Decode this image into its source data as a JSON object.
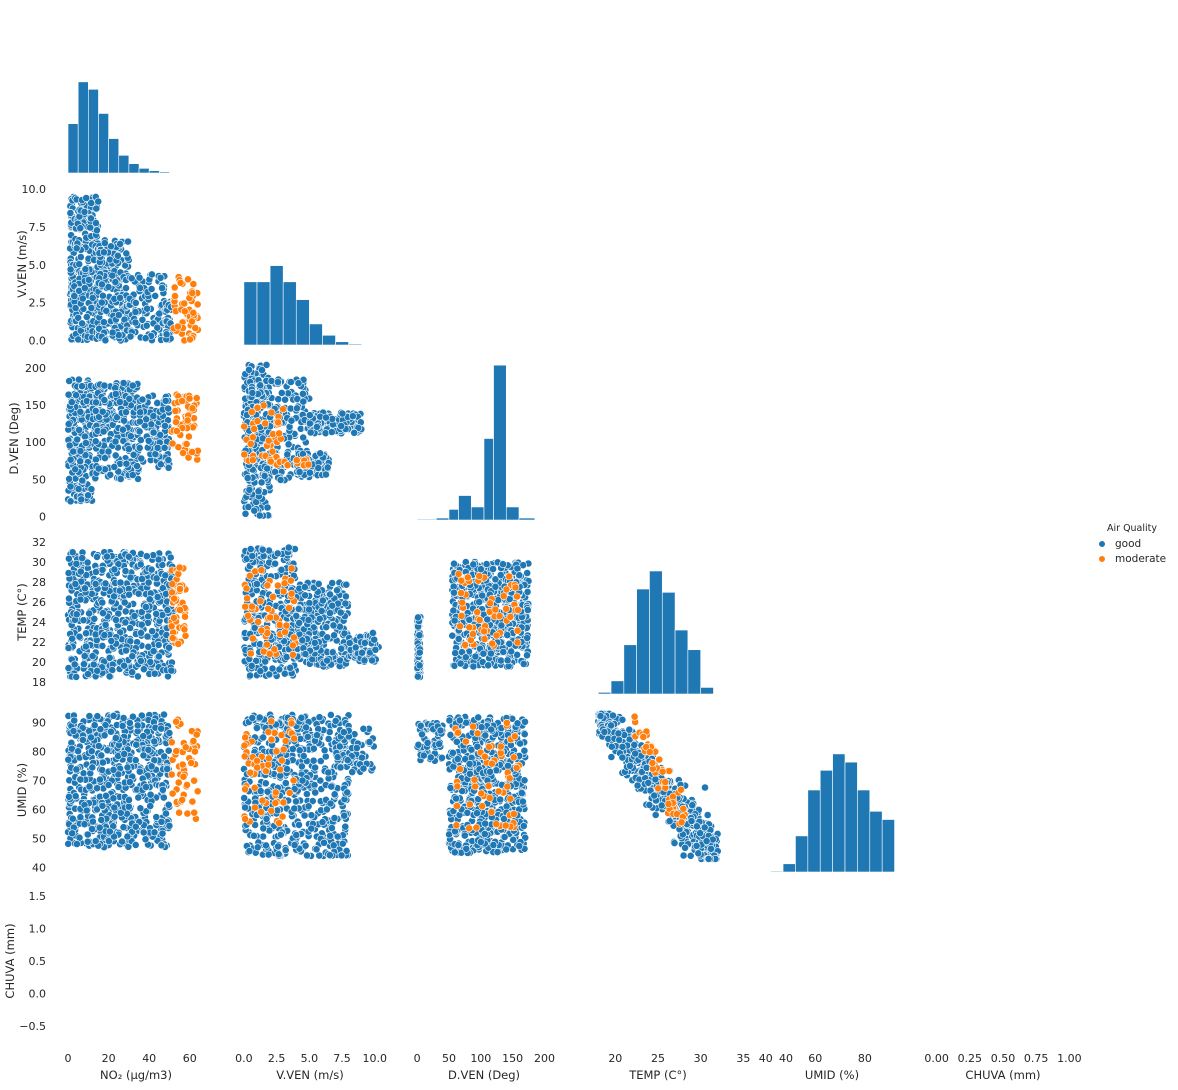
{
  "chart_data": {
    "type": "scatter",
    "kind": "pairplot-lower-corner",
    "variables": [
      {
        "key": "no2",
        "label": "NO₂ (µg/m3)",
        "range": [
          -1,
          68
        ],
        "ticks": [
          0,
          20,
          40,
          60
        ]
      },
      {
        "key": "vven",
        "label": "V.VEN (m/s)",
        "range": [
          -0.3,
          10.4
        ],
        "ticks": [
          0.0,
          2.5,
          5.0,
          7.5,
          10.0
        ],
        "tick_labels": [
          "0.0",
          "2.5",
          "5.0",
          "7.5",
          "10.0"
        ]
      },
      {
        "key": "dven",
        "label": "D.VEN (Deg)",
        "range": [
          -5,
          215
        ],
        "ticks": [
          0,
          50,
          100,
          150,
          200
        ]
      },
      {
        "key": "temp",
        "label": "TEMP (C°)",
        "range": [
          16.8,
          33.2
        ],
        "ticks": [
          18,
          20,
          22,
          24,
          26,
          28,
          30,
          32
        ],
        "x_ticks": [
          20,
          25,
          30,
          35,
          40
        ]
      },
      {
        "key": "umid",
        "label": "UMID (%)",
        "range": [
          38.5,
          95
        ],
        "ticks": [
          40,
          50,
          60,
          70,
          80,
          90
        ],
        "x_ticks": [
          40,
          60,
          80
        ]
      },
      {
        "key": "chuva",
        "label": "CHUVA (mm)",
        "range": [
          -0.72,
          1.72
        ],
        "ticks": [
          -0.5,
          0.0,
          0.5,
          1.0,
          1.5
        ],
        "tick_labels": [
          "−0.5",
          "0.0",
          "0.5",
          "1.0",
          "1.5"
        ],
        "x_range": [
          -0.05,
          1.05
        ],
        "x_ticks": [
          0.0,
          0.25,
          0.5,
          0.75,
          1.0
        ],
        "x_tick_labels": [
          "0.00",
          "0.25",
          "0.50",
          "0.75",
          "1.00"
        ]
      }
    ],
    "hue": "Air Quality",
    "legend": {
      "title": "Air Quality",
      "placement": "right-center",
      "entries": [
        "good",
        "moderate"
      ]
    },
    "colors": {
      "good": "#1f77b4",
      "moderate": "#ff7f0e"
    },
    "histograms": {
      "no2": {
        "bins": [
          [
            0,
            5,
            0.53
          ],
          [
            5,
            10,
            0.98
          ],
          [
            10,
            15,
            0.9
          ],
          [
            15,
            20,
            0.64
          ],
          [
            20,
            25,
            0.37
          ],
          [
            25,
            30,
            0.19
          ],
          [
            30,
            35,
            0.1
          ],
          [
            35,
            40,
            0.05
          ],
          [
            40,
            45,
            0.025
          ],
          [
            45,
            50,
            0.012
          ]
        ]
      },
      "vven": {
        "bins": [
          [
            0,
            1,
            0.39
          ],
          [
            1,
            2,
            0.39
          ],
          [
            2,
            3,
            0.49
          ],
          [
            3,
            4,
            0.39
          ],
          [
            4,
            5,
            0.28
          ],
          [
            5,
            6,
            0.13
          ],
          [
            6,
            7,
            0.06
          ],
          [
            7,
            8,
            0.02
          ],
          [
            8,
            9,
            0.006
          ]
        ]
      },
      "dven": {
        "bins": [
          [
            0,
            30,
            0.005
          ],
          [
            30,
            50,
            0.012
          ],
          [
            50,
            65,
            0.065
          ],
          [
            65,
            85,
            0.15
          ],
          [
            85,
            105,
            0.08
          ],
          [
            105,
            120,
            0.5
          ],
          [
            120,
            140,
            0.95
          ],
          [
            140,
            160,
            0.08
          ],
          [
            160,
            185,
            0.012
          ],
          [
            185,
            205,
            0.003
          ]
        ]
      },
      "temp": {
        "bins": [
          [
            18,
            19.5,
            0.01
          ],
          [
            19.5,
            21,
            0.08
          ],
          [
            21,
            22.5,
            0.3
          ],
          [
            22.5,
            24,
            0.64
          ],
          [
            24,
            25.5,
            0.75
          ],
          [
            25.5,
            27,
            0.62
          ],
          [
            27,
            28.5,
            0.39
          ],
          [
            28.5,
            30,
            0.27
          ],
          [
            30,
            31.5,
            0.04
          ]
        ]
      },
      "umid": {
        "bins": [
          [
            42,
            47,
            0.005
          ],
          [
            47,
            52,
            0.05
          ],
          [
            52,
            57,
            0.22
          ],
          [
            57,
            62,
            0.5
          ],
          [
            62,
            67,
            0.62
          ],
          [
            67,
            72,
            0.72
          ],
          [
            72,
            77,
            0.67
          ],
          [
            77,
            82,
            0.5
          ],
          [
            82,
            87,
            0.37
          ],
          [
            87,
            92,
            0.32
          ]
        ]
      }
    },
    "scatter_shapes": {
      "no2|vven": {
        "good": [
          {
            "x": [
              1,
              3
            ],
            "y": [
              0,
              9.5
            ],
            "w": 0.15
          },
          {
            "x": [
              3,
              15
            ],
            "y": [
              0,
              9.5
            ],
            "w": 0.35
          },
          {
            "x": [
              15,
              30
            ],
            "y": [
              0,
              6.8
            ],
            "w": 0.3
          },
          {
            "x": [
              30,
              48
            ],
            "y": [
              0,
              4.5
            ],
            "w": 0.15
          },
          {
            "x": [
              48,
              51
            ],
            "y": [
              0,
              2.6
            ],
            "w": 0.05
          }
        ],
        "moderate": [
          {
            "x": [
              51,
              64
            ],
            "y": [
              0,
              4.2
            ],
            "w": 1
          }
        ]
      },
      "no2|dven": {
        "good": [
          {
            "x": [
              0,
              12
            ],
            "y": [
              20,
              185
            ],
            "w": 0.4
          },
          {
            "x": [
              12,
              35
            ],
            "y": [
              50,
              180
            ],
            "w": 0.4
          },
          {
            "x": [
              35,
              50
            ],
            "y": [
              65,
              165
            ],
            "w": 0.2
          }
        ],
        "moderate": [
          {
            "x": [
              51,
              64
            ],
            "y": [
              75,
              165
            ],
            "w": 1
          }
        ]
      },
      "vven|dven": {
        "good": [
          {
            "x": [
              0,
              2
            ],
            "y": [
              0,
              205
            ],
            "w": 0.3
          },
          {
            "x": [
              0,
              5
            ],
            "y": [
              45,
              185
            ],
            "w": 0.35
          },
          {
            "x": [
              5,
              9
            ],
            "y": [
              112,
              140
            ],
            "w": 0.2
          },
          {
            "x": [
              4,
              6.5
            ],
            "y": [
              55,
              85
            ],
            "w": 0.15
          }
        ],
        "moderate": [
          {
            "x": [
              0,
              3
            ],
            "y": [
              65,
              150
            ],
            "w": 0.7
          },
          {
            "x": [
              2,
              5
            ],
            "y": [
              68,
              80
            ],
            "w": 0.3
          }
        ]
      },
      "no2|temp": {
        "good": [
          {
            "x": [
              0,
              52
            ],
            "y": [
              18.5,
              31
            ],
            "w": 1
          }
        ],
        "moderate": [
          {
            "x": [
              51,
              58
            ],
            "y": [
              21.5,
              29.5
            ],
            "w": 1
          }
        ]
      },
      "vven|temp": {
        "good": [
          {
            "x": [
              0,
              4
            ],
            "y": [
              18.5,
              31.5
            ],
            "w": 0.5
          },
          {
            "x": [
              4,
              8
            ],
            "y": [
              19.5,
              28
            ],
            "w": 0.4
          },
          {
            "x": [
              8,
              10.3
            ],
            "y": [
              20,
              23
            ],
            "w": 0.1
          }
        ],
        "moderate": [
          {
            "x": [
              0,
              4
            ],
            "y": [
              20.5,
              29.5
            ],
            "w": 1
          }
        ]
      },
      "dven|temp": {
        "good": [
          {
            "x": [
              55,
              175
            ],
            "y": [
              19.5,
              30
            ],
            "w": 0.9
          },
          {
            "x": [
              0,
              5
            ],
            "y": [
              18.5,
              24.5
            ],
            "w": 0.1
          }
        ],
        "moderate": [
          {
            "x": [
              65,
              160
            ],
            "y": [
              21.5,
              29
            ],
            "w": 1
          }
        ]
      },
      "no2|umid": {
        "good": [
          {
            "x": [
              0,
              50
            ],
            "y": [
              47,
              93
            ],
            "w": 1
          }
        ],
        "moderate": [
          {
            "x": [
              51,
              64
            ],
            "y": [
              54,
              92
            ],
            "w": 1
          }
        ]
      },
      "vven|umid": {
        "good": [
          {
            "x": [
              0,
              8
            ],
            "y": [
              44,
              93
            ],
            "w": 0.9
          },
          {
            "x": [
              7,
              10
            ],
            "y": [
              72,
              89
            ],
            "w": 0.1
          }
        ],
        "moderate": [
          {
            "x": [
              0,
              4
            ],
            "y": [
              55,
              92
            ],
            "w": 1
          }
        ]
      },
      "dven|umid": {
        "good": [
          {
            "x": [
              50,
              170
            ],
            "y": [
              45,
              92
            ],
            "w": 0.9
          },
          {
            "x": [
              0,
              40
            ],
            "y": [
              76,
              90
            ],
            "w": 0.1
          }
        ],
        "moderate": [
          {
            "x": [
              60,
              160
            ],
            "y": [
              53,
              92
            ],
            "w": 1
          }
        ]
      },
      "temp|umid": {
        "good": [
          {
            "trend": true,
            "x": [
              18,
              32
            ],
            "y": [
              43,
              93
            ],
            "w": 1
          }
        ],
        "moderate": [
          {
            "trend": true,
            "x": [
              22,
              28.5
            ],
            "y": [
              54,
              92
            ],
            "w": 1
          }
        ]
      }
    }
  }
}
